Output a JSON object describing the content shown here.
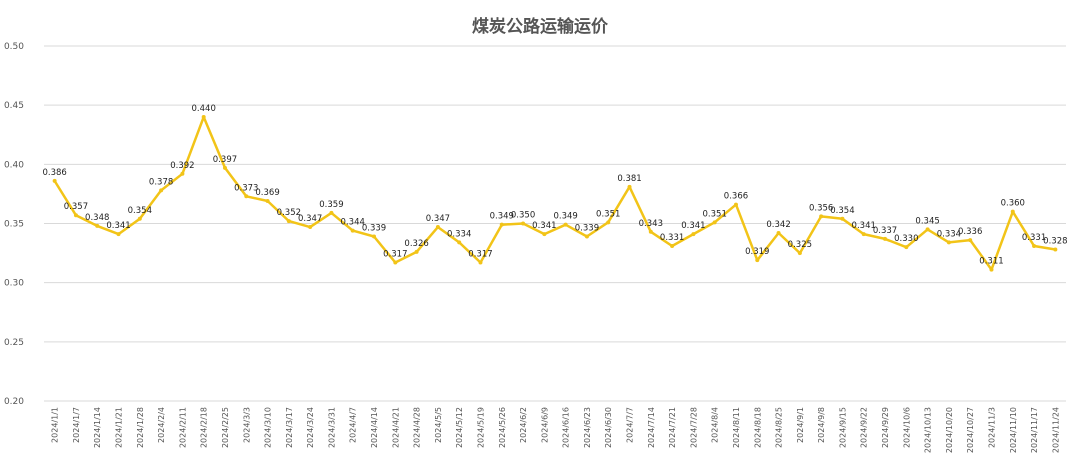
{
  "chart_data": {
    "type": "line",
    "title": "煤炭公路运输运价",
    "xlabel": "",
    "ylabel": "",
    "ylim": [
      0.2,
      0.5
    ],
    "yticks": [
      "0.20",
      "0.25",
      "0.30",
      "0.35",
      "0.40",
      "0.45",
      "0.50"
    ],
    "grid": "horizontal",
    "legend": "none",
    "line_color": "#F2C418",
    "categories": [
      "2024/1/1",
      "2024/1/7",
      "2024/1/14",
      "2024/1/21",
      "2024/1/28",
      "2024/2/4",
      "2024/2/11",
      "2024/2/18",
      "2024/2/25",
      "2024/3/3",
      "2024/3/10",
      "2024/3/17",
      "2024/3/24",
      "2024/3/31",
      "2024/4/7",
      "2024/4/14",
      "2024/4/21",
      "2024/4/28",
      "2024/5/5",
      "2024/5/12",
      "2024/5/19",
      "2024/5/26",
      "2024/6/2",
      "2024/6/9",
      "2024/6/16",
      "2024/6/23",
      "2024/6/30",
      "2024/7/7",
      "2024/7/14",
      "2024/7/21",
      "2024/7/28",
      "2024/8/4",
      "2024/8/11",
      "2024/8/18",
      "2024/8/25",
      "2024/9/1",
      "2024/9/8",
      "2024/9/15",
      "2024/9/22",
      "2024/9/29",
      "2024/10/6",
      "2024/10/13",
      "2024/10/20",
      "2024/10/27",
      "2024/11/3",
      "2024/11/10",
      "2024/11/17",
      "2024/11/24"
    ],
    "values": [
      0.386,
      0.357,
      0.348,
      0.341,
      0.354,
      0.378,
      0.392,
      0.44,
      0.397,
      0.373,
      0.369,
      0.352,
      0.347,
      0.359,
      0.344,
      0.339,
      0.317,
      0.326,
      0.347,
      0.334,
      0.317,
      0.349,
      0.35,
      0.341,
      0.349,
      0.339,
      0.351,
      0.381,
      0.343,
      0.331,
      0.341,
      0.351,
      0.366,
      0.319,
      0.342,
      0.325,
      0.356,
      0.354,
      0.341,
      0.337,
      0.33,
      0.345,
      0.334,
      0.336,
      0.311,
      0.36,
      0.331,
      0.328
    ],
    "labels": [
      "0.386",
      "0.357",
      "0.348",
      "0.341",
      "0.354",
      "0.378",
      "0.392",
      "0.440",
      "0.397",
      "0.373",
      "0.369",
      "0.352",
      "0.347",
      "0.359",
      "0.344",
      "0.339",
      "0.317",
      "0.326",
      "0.347",
      "0.334",
      "0.317",
      "0.349",
      "0.350",
      "0.341",
      "0.349",
      "0.339",
      "0.351",
      "0.381",
      "0.343",
      "0.331",
      "0.341",
      "0.351",
      "0.366",
      "0.319",
      "0.342",
      "0.325",
      "0.356",
      "0.354",
      "0.341",
      "0.337",
      "0.330",
      "0.345",
      "0.334",
      "0.336",
      "0.311",
      "0.360",
      "0.331",
      "0.328"
    ]
  }
}
